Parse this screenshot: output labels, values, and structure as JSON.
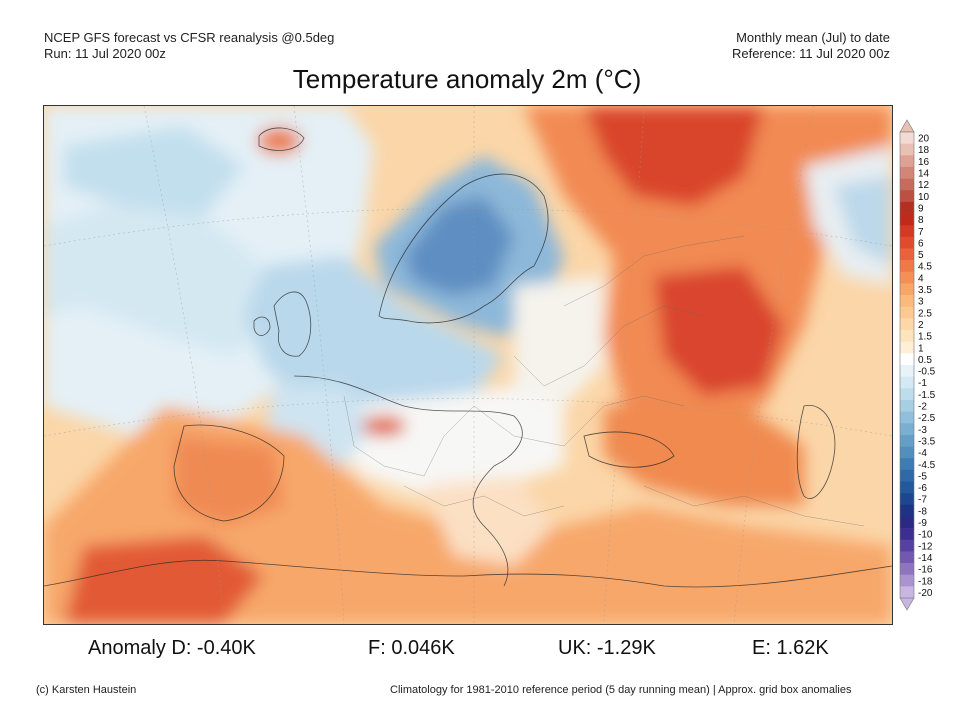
{
  "header": {
    "left_line1": "NCEP GFS forecast vs CFSR reanalysis @0.5deg",
    "left_line2": "Run: 11 Jul 2020 00z",
    "right_line1": "Monthly mean (Jul) to date",
    "right_line2": "Reference: 11 Jul 2020 00z"
  },
  "title": "Temperature anomaly 2m (°C)",
  "colorbar": {
    "labels": [
      "20",
      "18",
      "16",
      "14",
      "12",
      "10",
      "9",
      "8",
      "7",
      "6",
      "5",
      "4.5",
      "4",
      "3.5",
      "3",
      "2.5",
      "2",
      "1.5",
      "1",
      "0.5",
      "-0.5",
      "-1",
      "-1.5",
      "-2",
      "-2.5",
      "-3",
      "-3.5",
      "-4",
      "-4.5",
      "-5",
      "-6",
      "-7",
      "-8",
      "-9",
      "-10",
      "-12",
      "-14",
      "-16",
      "-18",
      "-20"
    ],
    "colors": [
      "#f3dbd3",
      "#e9c0b4",
      "#dea294",
      "#d38677",
      "#c86b5d",
      "#bc5043",
      "#b23020",
      "#c02a1a",
      "#d33a24",
      "#e04b2d",
      "#e8623a",
      "#ef7a45",
      "#f48f55",
      "#f8a566",
      "#fbba7c",
      "#fcca91",
      "#fdd8a6",
      "#fde4bd",
      "#feefd6",
      "#ffffff",
      "#e7f3f8",
      "#d3e9f3",
      "#bddcec",
      "#a8cee4",
      "#91bfdb",
      "#7aafd2",
      "#659fc8",
      "#508fbe",
      "#3c7db3",
      "#2d6aa7",
      "#23589c",
      "#1d4590",
      "#1e3385",
      "#2a2a86",
      "#3d2e92",
      "#5640a1",
      "#7258b0",
      "#8f74c0",
      "#ab93d0",
      "#c8b5e0"
    ],
    "top_arrow_color": "#e9c0b4",
    "bottom_arrow_color": "#c8b5e0"
  },
  "stats": {
    "d": "Anomaly D: -0.40K",
    "f": "F: 0.046K",
    "uk": "UK: -1.29K",
    "e": "E: 1.62K"
  },
  "footer": {
    "left": "(c) Karsten Haustein",
    "right": "Climatology for 1981-2010 reference period (5 day running mean) | Approx. grid box anomalies"
  }
}
